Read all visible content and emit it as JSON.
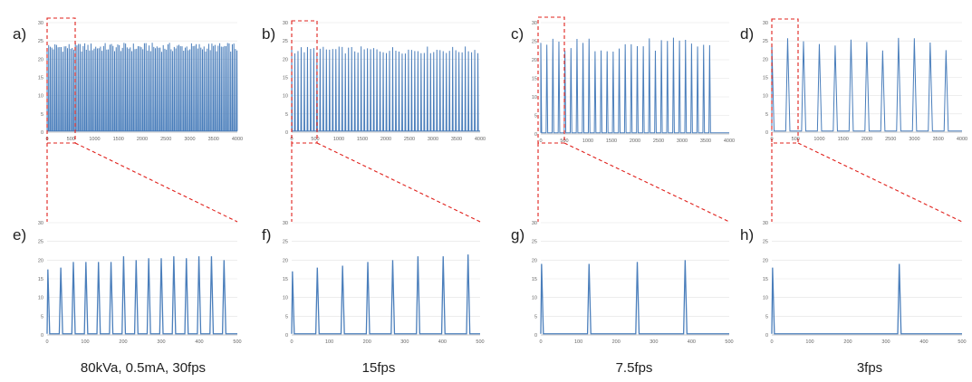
{
  "colors": {
    "series": "#4a7ebb",
    "zoom": "#e0201b",
    "grid": "#e2e2e2",
    "tick": "#666666"
  },
  "captions": [
    "80kVa, 0.5mA, 30fps",
    "15fps",
    "7.5fps",
    "3fps"
  ],
  "chart_data": [
    {
      "id": "a",
      "label": "a)",
      "type": "line",
      "xlim": [
        0,
        4000
      ],
      "ylim": [
        0,
        30
      ],
      "xticks": [
        "0",
        "500",
        "1000",
        "1500",
        "2000",
        "2500",
        "3000",
        "3500",
        "4000"
      ],
      "yticks": [
        "0",
        "5",
        "10",
        "15",
        "20",
        "25",
        "30"
      ],
      "pattern": {
        "first": 0,
        "period": 33,
        "end": 4000,
        "peak_low": 22,
        "peak_high": 24.5,
        "baseline": 0
      }
    },
    {
      "id": "b",
      "label": "b)",
      "type": "line",
      "xlim": [
        0,
        4000
      ],
      "ylim": [
        0,
        30
      ],
      "xticks": [
        "0",
        "500",
        "1000",
        "1500",
        "2000",
        "2500",
        "3000",
        "3500",
        "4000"
      ],
      "yticks": [
        "0",
        "5",
        "10",
        "15",
        "20",
        "25",
        "30"
      ],
      "pattern": {
        "first": 0,
        "period": 67,
        "end": 4000,
        "peak_low": 21.5,
        "peak_high": 23.5,
        "baseline": 0
      }
    },
    {
      "id": "c",
      "label": "c)",
      "type": "line",
      "xlim": [
        0,
        4000
      ],
      "ylim": [
        0,
        30
      ],
      "xticks": [
        "0",
        "500",
        "1000",
        "1500",
        "2000",
        "2500",
        "3000",
        "3500",
        "4000"
      ],
      "yticks": [
        "0",
        "5",
        "10",
        "15",
        "20",
        "25",
        "30"
      ],
      "pattern": {
        "first": 0,
        "period": 128,
        "end": 3700,
        "peak_low": 22,
        "peak_high": 26,
        "baseline": 0
      }
    },
    {
      "id": "d",
      "label": "d)",
      "type": "line",
      "xlim": [
        0,
        4000
      ],
      "ylim": [
        0,
        30
      ],
      "xticks": [
        "0",
        "500",
        "1000",
        "1500",
        "2000",
        "2500",
        "3000",
        "3500",
        "4000"
      ],
      "yticks": [
        "0",
        "5",
        "10",
        "15",
        "20",
        "25",
        "30"
      ],
      "pattern": {
        "first": 0,
        "period": 333,
        "end": 3700,
        "peak_low": 22,
        "peak_high": 26,
        "baseline": 0
      }
    },
    {
      "id": "e",
      "label": "e)",
      "type": "line",
      "xlim": [
        0,
        500
      ],
      "ylim": [
        0,
        30
      ],
      "xticks": [
        "0",
        "100",
        "200",
        "300",
        "400",
        "500"
      ],
      "yticks": [
        "0",
        "5",
        "10",
        "15",
        "20",
        "25",
        "30"
      ],
      "peaks": [
        [
          2,
          17.5
        ],
        [
          36,
          18
        ],
        [
          69,
          19.5
        ],
        [
          102,
          19.5
        ],
        [
          135,
          19.5
        ],
        [
          168,
          19.5
        ],
        [
          201,
          21
        ],
        [
          234,
          20
        ],
        [
          267,
          20.5
        ],
        [
          300,
          20.5
        ],
        [
          333,
          21
        ],
        [
          366,
          20.5
        ],
        [
          399,
          21
        ],
        [
          432,
          21
        ],
        [
          465,
          20
        ]
      ]
    },
    {
      "id": "f",
      "label": "f)",
      "type": "line",
      "xlim": [
        0,
        500
      ],
      "ylim": [
        0,
        30
      ],
      "xticks": [
        "0",
        "100",
        "200",
        "300",
        "400",
        "500"
      ],
      "yticks": [
        "0",
        "5",
        "10",
        "15",
        "20",
        "25",
        "30"
      ],
      "peaks": [
        [
          2,
          17
        ],
        [
          68,
          18
        ],
        [
          135,
          18.5
        ],
        [
          202,
          19.5
        ],
        [
          268,
          20
        ],
        [
          335,
          21
        ],
        [
          402,
          21
        ],
        [
          468,
          21.5
        ]
      ]
    },
    {
      "id": "g",
      "label": "g)",
      "type": "line",
      "xlim": [
        0,
        500
      ],
      "ylim": [
        0,
        30
      ],
      "xticks": [
        "0",
        "100",
        "200",
        "300",
        "400",
        "500"
      ],
      "yticks": [
        "0",
        "5",
        "10",
        "15",
        "20",
        "25",
        "30"
      ],
      "peaks": [
        [
          2,
          19
        ],
        [
          128,
          19
        ],
        [
          256,
          19.5
        ],
        [
          383,
          20
        ]
      ]
    },
    {
      "id": "h",
      "label": "h)",
      "type": "line",
      "xlim": [
        0,
        500
      ],
      "ylim": [
        0,
        30
      ],
      "xticks": [
        "0",
        "100",
        "200",
        "300",
        "400",
        "500"
      ],
      "yticks": [
        "0",
        "5",
        "10",
        "15",
        "20",
        "25",
        "30"
      ],
      "peaks": [
        [
          2,
          18
        ],
        [
          335,
          19
        ]
      ]
    }
  ]
}
